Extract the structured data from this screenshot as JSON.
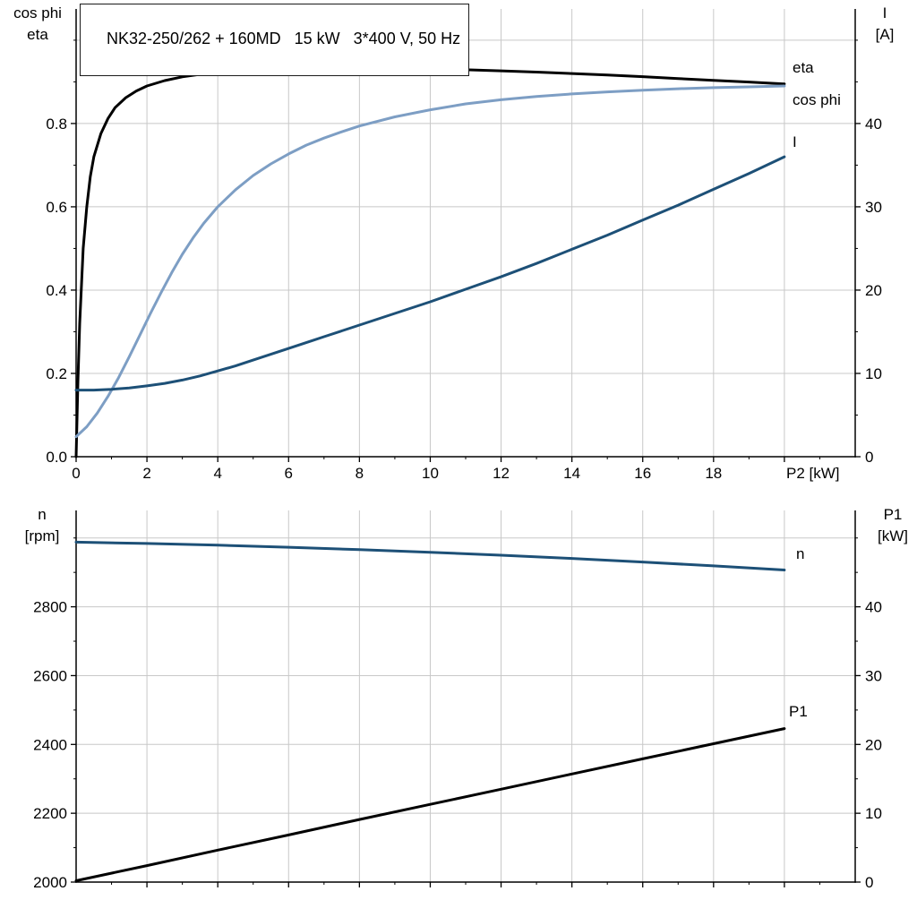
{
  "style": {
    "background": "#ffffff",
    "grid": "#c8c8c8",
    "axis": "#000000",
    "black": "#000000",
    "light_blue": "#7d9ec4",
    "dark_blue": "#1d5077"
  },
  "chart_data": [
    {
      "type": "line",
      "title": "NK32-250/262 + 160MD   15 kW   3*400 V, 50 Hz",
      "xlabel": "P2 [kW]",
      "xlim": [
        0,
        22
      ],
      "x_ticks": [
        0,
        2,
        4,
        6,
        8,
        10,
        12,
        14,
        16,
        18,
        20
      ],
      "x_tick_labels": [
        "0",
        "2",
        "4",
        "6",
        "8",
        "10",
        "12",
        "14",
        "16",
        "18",
        ""
      ],
      "x_minor": [
        1,
        3,
        5,
        7,
        9,
        11,
        13,
        15,
        17,
        19,
        21
      ],
      "grid_x": [
        2,
        4,
        6,
        8,
        10,
        12,
        14,
        16,
        18,
        20
      ],
      "corner_left": [
        "cos phi",
        "eta"
      ],
      "corner_right": [
        "I",
        "[A]"
      ],
      "left_axis": {
        "lim": [
          0,
          1.075
        ],
        "ticks": [
          0,
          0.2,
          0.4,
          0.6,
          0.8
        ],
        "tick_labels": [
          "0.0",
          "0.2",
          "0.4",
          "0.6",
          "0.8"
        ],
        "minor": [
          0.1,
          0.3,
          0.5,
          0.7,
          0.9,
          1.0
        ],
        "grid": [
          0.2,
          0.4,
          0.6,
          0.8,
          1.0
        ]
      },
      "right_axis": {
        "lim": [
          0,
          53.75
        ],
        "ticks": [
          0,
          10,
          20,
          30,
          40
        ],
        "tick_labels": [
          "0",
          "10",
          "20",
          "30",
          "40"
        ],
        "minor": [
          5,
          15,
          25,
          35,
          45,
          50
        ]
      },
      "series": [
        {
          "name": "eta",
          "axis": "left",
          "color": "#000000",
          "width": 3,
          "label_pos": [
            885,
            81
          ],
          "points": [
            [
              0,
              0
            ],
            [
              0.05,
              0.18
            ],
            [
              0.1,
              0.32
            ],
            [
              0.2,
              0.5
            ],
            [
              0.3,
              0.6
            ],
            [
              0.4,
              0.672
            ],
            [
              0.5,
              0.72
            ],
            [
              0.7,
              0.776
            ],
            [
              0.9,
              0.812
            ],
            [
              1.1,
              0.838
            ],
            [
              1.4,
              0.862
            ],
            [
              1.7,
              0.878
            ],
            [
              2,
              0.89
            ],
            [
              2.5,
              0.903
            ],
            [
              3,
              0.912
            ],
            [
              3.5,
              0.918
            ],
            [
              4,
              0.923
            ],
            [
              5,
              0.928
            ],
            [
              6,
              0.931
            ],
            [
              7,
              0.9325
            ],
            [
              8,
              0.933
            ],
            [
              9,
              0.9325
            ],
            [
              10,
              0.931
            ],
            [
              11,
              0.929
            ],
            [
              12,
              0.9265
            ],
            [
              13,
              0.9235
            ],
            [
              14,
              0.92
            ],
            [
              15,
              0.9165
            ],
            [
              16,
              0.9125
            ],
            [
              17,
              0.908
            ],
            [
              18,
              0.9035
            ],
            [
              19,
              0.8995
            ],
            [
              20,
              0.895
            ]
          ]
        },
        {
          "name": "cos phi",
          "axis": "left",
          "color": "#7d9ec4",
          "width": 3,
          "label_pos": [
            885,
            117
          ],
          "points": [
            [
              0,
              0.048
            ],
            [
              0.3,
              0.072
            ],
            [
              0.6,
              0.105
            ],
            [
              0.9,
              0.145
            ],
            [
              1.2,
              0.19
            ],
            [
              1.5,
              0.24
            ],
            [
              1.8,
              0.292
            ],
            [
              2.1,
              0.344
            ],
            [
              2.4,
              0.394
            ],
            [
              2.7,
              0.442
            ],
            [
              3,
              0.486
            ],
            [
              3.3,
              0.525
            ],
            [
              3.6,
              0.56
            ],
            [
              4,
              0.6
            ],
            [
              4.5,
              0.641
            ],
            [
              5,
              0.675
            ],
            [
              5.5,
              0.703
            ],
            [
              6,
              0.727
            ],
            [
              6.5,
              0.748
            ],
            [
              7,
              0.765
            ],
            [
              7.5,
              0.78
            ],
            [
              8,
              0.794
            ],
            [
              9,
              0.816
            ],
            [
              10,
              0.833
            ],
            [
              11,
              0.847
            ],
            [
              12,
              0.857
            ],
            [
              13,
              0.865
            ],
            [
              14,
              0.871
            ],
            [
              15,
              0.876
            ],
            [
              16,
              0.88
            ],
            [
              17,
              0.8835
            ],
            [
              18,
              0.886
            ],
            [
              19,
              0.888
            ],
            [
              20,
              0.89
            ]
          ]
        },
        {
          "name": "I",
          "axis": "right",
          "color": "#1d5077",
          "width": 3,
          "label_pos": [
            885,
            164
          ],
          "points": [
            [
              0,
              8.0
            ],
            [
              0.5,
              8.0
            ],
            [
              1,
              8.1
            ],
            [
              1.5,
              8.25
            ],
            [
              2,
              8.5
            ],
            [
              2.5,
              8.8
            ],
            [
              3,
              9.2
            ],
            [
              3.5,
              9.7
            ],
            [
              4,
              10.3
            ],
            [
              4.5,
              10.9
            ],
            [
              5,
              11.6
            ],
            [
              5.5,
              12.3
            ],
            [
              6,
              13.0
            ],
            [
              6.5,
              13.7
            ],
            [
              7,
              14.4
            ],
            [
              7.5,
              15.1
            ],
            [
              8,
              15.8
            ],
            [
              9,
              17.2
            ],
            [
              10,
              18.6
            ],
            [
              11,
              20.1
            ],
            [
              12,
              21.6
            ],
            [
              13,
              23.2
            ],
            [
              14,
              24.9
            ],
            [
              15,
              26.6
            ],
            [
              16,
              28.4
            ],
            [
              17,
              30.2
            ],
            [
              18,
              32.1
            ],
            [
              19,
              34.0
            ],
            [
              20,
              36.0
            ]
          ]
        }
      ]
    },
    {
      "type": "line",
      "title": "",
      "xlabel": "",
      "xlim": [
        0,
        22
      ],
      "x_ticks": [
        2,
        4,
        6,
        8,
        10,
        12,
        14,
        16,
        18,
        20
      ],
      "x_tick_labels": null,
      "x_minor": [
        1,
        3,
        5,
        7,
        9,
        11,
        13,
        15,
        17,
        19,
        21
      ],
      "grid_x": [
        2,
        4,
        6,
        8,
        10,
        12,
        14,
        16,
        18,
        20
      ],
      "corner_left": [
        "n",
        "[rpm]"
      ],
      "corner_right": [
        "P1",
        "[kW]"
      ],
      "left_axis": {
        "lim": [
          2000,
          3080
        ],
        "ticks": [
          2000,
          2200,
          2400,
          2600,
          2800
        ],
        "tick_labels": [
          "2000",
          "2200",
          "2400",
          "2600",
          "2800"
        ],
        "minor": [
          2100,
          2300,
          2500,
          2700,
          2900,
          3000
        ],
        "grid": [
          2200,
          2400,
          2600,
          2800,
          3000
        ]
      },
      "right_axis": {
        "lim": [
          0,
          54
        ],
        "ticks": [
          0,
          10,
          20,
          30,
          40
        ],
        "tick_labels": [
          "0",
          "10",
          "20",
          "30",
          "40"
        ],
        "minor": [
          5,
          15,
          25,
          35,
          45,
          50
        ]
      },
      "series": [
        {
          "name": "n",
          "axis": "left",
          "color": "#1d5077",
          "width": 3,
          "label_pos": [
            889,
            64
          ],
          "points": [
            [
              0,
              2988
            ],
            [
              2,
              2984
            ],
            [
              4,
              2979
            ],
            [
              6,
              2973
            ],
            [
              8,
              2966
            ],
            [
              10,
              2958.5
            ],
            [
              12,
              2950
            ],
            [
              14,
              2940.5
            ],
            [
              16,
              2930
            ],
            [
              18,
              2919
            ],
            [
              20,
              2907
            ]
          ]
        },
        {
          "name": "P1",
          "axis": "right",
          "color": "#000000",
          "width": 3,
          "label_pos": [
            881,
            240
          ],
          "points": [
            [
              0,
              0.2
            ],
            [
              2,
              2.4
            ],
            [
              4,
              4.65
            ],
            [
              6,
              6.85
            ],
            [
              8,
              9.1
            ],
            [
              10,
              11.3
            ],
            [
              12,
              13.5
            ],
            [
              14,
              15.7
            ],
            [
              16,
              17.9
            ],
            [
              18,
              20.1
            ],
            [
              20,
              22.3
            ]
          ]
        }
      ]
    }
  ]
}
